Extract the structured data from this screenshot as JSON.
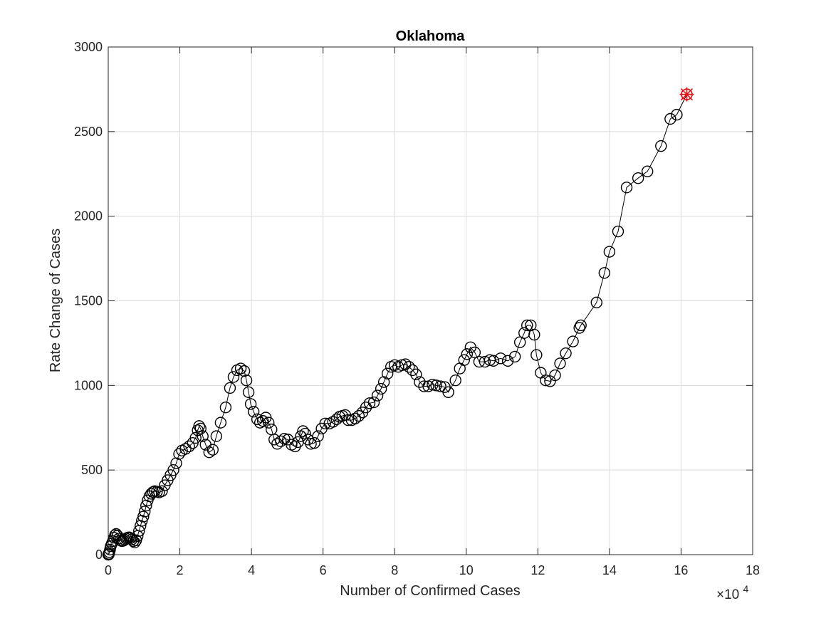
{
  "chart_data": {
    "type": "scatter",
    "title": "Oklahoma",
    "xlabel": "Number of Confirmed Cases",
    "ylabel": "Rate Change of Cases",
    "x_multiplier_label": "×10",
    "x_multiplier_exp": "4",
    "xlim": [
      0,
      18
    ],
    "ylim": [
      0,
      3000
    ],
    "xticks": [
      "0",
      "2",
      "4",
      "6",
      "8",
      "10",
      "12",
      "14",
      "16",
      "18"
    ],
    "yticks": [
      "0",
      "500",
      "1000",
      "1500",
      "2000",
      "2500",
      "3000"
    ],
    "grid": true,
    "marker": "circle",
    "line_color": "#000000",
    "marker_color": "#000000",
    "highlight_color": "#e0161b",
    "series": [
      {
        "points": [
          [
            0.0,
            0
          ],
          [
            0.01,
            0
          ],
          [
            0.02,
            5
          ],
          [
            0.03,
            15
          ],
          [
            0.05,
            30
          ],
          [
            0.07,
            50
          ],
          [
            0.1,
            65
          ],
          [
            0.13,
            80
          ],
          [
            0.16,
            100
          ],
          [
            0.19,
            115
          ],
          [
            0.22,
            122
          ],
          [
            0.26,
            112
          ],
          [
            0.3,
            95
          ],
          [
            0.34,
            85
          ],
          [
            0.38,
            80
          ],
          [
            0.42,
            82
          ],
          [
            0.46,
            88
          ],
          [
            0.5,
            95
          ],
          [
            0.54,
            100
          ],
          [
            0.58,
            102
          ],
          [
            0.62,
            98
          ],
          [
            0.66,
            90
          ],
          [
            0.7,
            80
          ],
          [
            0.74,
            72
          ],
          [
            0.78,
            85
          ],
          [
            0.82,
            110
          ],
          [
            0.86,
            140
          ],
          [
            0.9,
            170
          ],
          [
            0.94,
            200
          ],
          [
            0.98,
            225
          ],
          [
            1.02,
            255
          ],
          [
            1.06,
            290
          ],
          [
            1.1,
            320
          ],
          [
            1.15,
            345
          ],
          [
            1.2,
            360
          ],
          [
            1.25,
            370
          ],
          [
            1.3,
            375
          ],
          [
            1.36,
            372
          ],
          [
            1.42,
            368
          ],
          [
            1.5,
            375
          ],
          [
            1.58,
            410
          ],
          [
            1.66,
            440
          ],
          [
            1.74,
            470
          ],
          [
            1.82,
            500
          ],
          [
            1.9,
            540
          ],
          [
            1.98,
            595
          ],
          [
            2.06,
            615
          ],
          [
            2.16,
            625
          ],
          [
            2.26,
            640
          ],
          [
            2.36,
            660
          ],
          [
            2.44,
            690
          ],
          [
            2.5,
            735
          ],
          [
            2.54,
            760
          ],
          [
            2.58,
            745
          ],
          [
            2.64,
            700
          ],
          [
            2.72,
            650
          ],
          [
            2.82,
            605
          ],
          [
            2.92,
            620
          ],
          [
            3.02,
            700
          ],
          [
            3.14,
            780
          ],
          [
            3.28,
            870
          ],
          [
            3.4,
            985
          ],
          [
            3.5,
            1050
          ],
          [
            3.6,
            1090
          ],
          [
            3.7,
            1100
          ],
          [
            3.8,
            1085
          ],
          [
            3.86,
            1030
          ],
          [
            3.92,
            960
          ],
          [
            3.98,
            890
          ],
          [
            4.06,
            845
          ],
          [
            4.16,
            800
          ],
          [
            4.24,
            780
          ],
          [
            4.32,
            790
          ],
          [
            4.4,
            810
          ],
          [
            4.48,
            780
          ],
          [
            4.56,
            740
          ],
          [
            4.64,
            680
          ],
          [
            4.72,
            655
          ],
          [
            4.82,
            670
          ],
          [
            4.92,
            685
          ],
          [
            5.02,
            680
          ],
          [
            5.12,
            650
          ],
          [
            5.22,
            640
          ],
          [
            5.3,
            665
          ],
          [
            5.38,
            700
          ],
          [
            5.44,
            730
          ],
          [
            5.5,
            715
          ],
          [
            5.58,
            680
          ],
          [
            5.66,
            655
          ],
          [
            5.76,
            660
          ],
          [
            5.86,
            700
          ],
          [
            5.96,
            745
          ],
          [
            6.06,
            775
          ],
          [
            6.18,
            775
          ],
          [
            6.28,
            785
          ],
          [
            6.38,
            800
          ],
          [
            6.46,
            815
          ],
          [
            6.54,
            820
          ],
          [
            6.62,
            825
          ],
          [
            6.7,
            795
          ],
          [
            6.8,
            795
          ],
          [
            6.9,
            805
          ],
          [
            7.0,
            820
          ],
          [
            7.1,
            840
          ],
          [
            7.2,
            870
          ],
          [
            7.3,
            895
          ],
          [
            7.42,
            900
          ],
          [
            7.52,
            940
          ],
          [
            7.62,
            980
          ],
          [
            7.7,
            1020
          ],
          [
            7.8,
            1070
          ],
          [
            7.9,
            1110
          ],
          [
            8.0,
            1120
          ],
          [
            8.1,
            1110
          ],
          [
            8.2,
            1120
          ],
          [
            8.3,
            1125
          ],
          [
            8.4,
            1110
          ],
          [
            8.5,
            1090
          ],
          [
            8.6,
            1065
          ],
          [
            8.7,
            1020
          ],
          [
            8.82,
            995
          ],
          [
            8.94,
            995
          ],
          [
            9.06,
            1005
          ],
          [
            9.16,
            1000
          ],
          [
            9.28,
            995
          ],
          [
            9.4,
            990
          ],
          [
            9.5,
            960
          ],
          [
            9.7,
            1030
          ],
          [
            9.82,
            1100
          ],
          [
            9.94,
            1150
          ],
          [
            10.02,
            1185
          ],
          [
            10.12,
            1225
          ],
          [
            10.24,
            1195
          ],
          [
            10.36,
            1140
          ],
          [
            10.52,
            1140
          ],
          [
            10.66,
            1150
          ],
          [
            10.76,
            1145
          ],
          [
            10.96,
            1160
          ],
          [
            11.16,
            1145
          ],
          [
            11.36,
            1170
          ],
          [
            11.5,
            1255
          ],
          [
            11.62,
            1310
          ],
          [
            11.7,
            1355
          ],
          [
            11.8,
            1355
          ],
          [
            11.9,
            1300
          ],
          [
            11.96,
            1180
          ],
          [
            12.08,
            1075
          ],
          [
            12.22,
            1030
          ],
          [
            12.34,
            1025
          ],
          [
            12.48,
            1060
          ],
          [
            12.62,
            1130
          ],
          [
            12.78,
            1190
          ],
          [
            12.98,
            1260
          ],
          [
            13.16,
            1340
          ],
          [
            13.2,
            1355
          ],
          [
            13.64,
            1490
          ],
          [
            13.86,
            1665
          ],
          [
            14.0,
            1790
          ],
          [
            14.24,
            1910
          ],
          [
            14.48,
            2170
          ],
          [
            14.8,
            2225
          ],
          [
            15.06,
            2265
          ],
          [
            15.44,
            2415
          ],
          [
            15.7,
            2575
          ],
          [
            15.88,
            2600
          ],
          [
            16.16,
            2720
          ]
        ]
      }
    ],
    "highlight_point": [
      16.16,
      2720
    ]
  }
}
